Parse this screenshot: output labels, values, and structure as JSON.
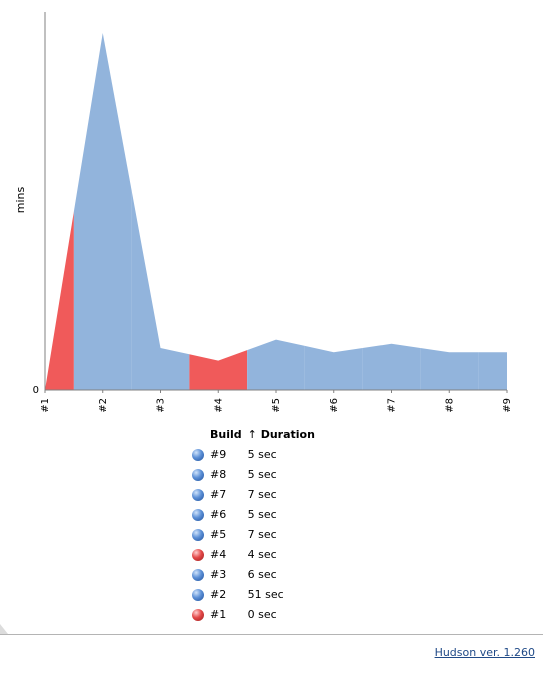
{
  "chart_data": {
    "type": "area",
    "x": [
      "#1",
      "#2",
      "#3",
      "#4",
      "#5",
      "#6",
      "#7",
      "#8",
      "#9"
    ],
    "ylabel": "mins",
    "ylim": [
      0,
      0.9
    ],
    "y_tick_labels": [
      "0"
    ],
    "series": [
      {
        "values": [
          0.0,
          0.85,
          0.1,
          0.07,
          0.12,
          0.09,
          0.11,
          0.09,
          0.09
        ]
      }
    ],
    "status": [
      "failed",
      "success",
      "success",
      "failed",
      "success",
      "success",
      "success",
      "success",
      "success"
    ],
    "colors": {
      "success": "#92b4dc",
      "failed": "#f05a5a",
      "axis": "#808080"
    }
  },
  "table": {
    "headers": {
      "build": "Build",
      "sort_arrow": "↑",
      "duration": "Duration"
    },
    "rows": [
      {
        "build": "#9",
        "duration": "5 sec",
        "status": "blue"
      },
      {
        "build": "#8",
        "duration": "5 sec",
        "status": "blue"
      },
      {
        "build": "#7",
        "duration": "7 sec",
        "status": "blue"
      },
      {
        "build": "#6",
        "duration": "5 sec",
        "status": "blue"
      },
      {
        "build": "#5",
        "duration": "7 sec",
        "status": "blue"
      },
      {
        "build": "#4",
        "duration": "4 sec",
        "status": "red"
      },
      {
        "build": "#3",
        "duration": "6 sec",
        "status": "blue"
      },
      {
        "build": "#2",
        "duration": "51 sec",
        "status": "blue"
      },
      {
        "build": "#1",
        "duration": "0 sec",
        "status": "red"
      }
    ]
  },
  "footer": {
    "version": "Hudson ver. 1.260"
  }
}
